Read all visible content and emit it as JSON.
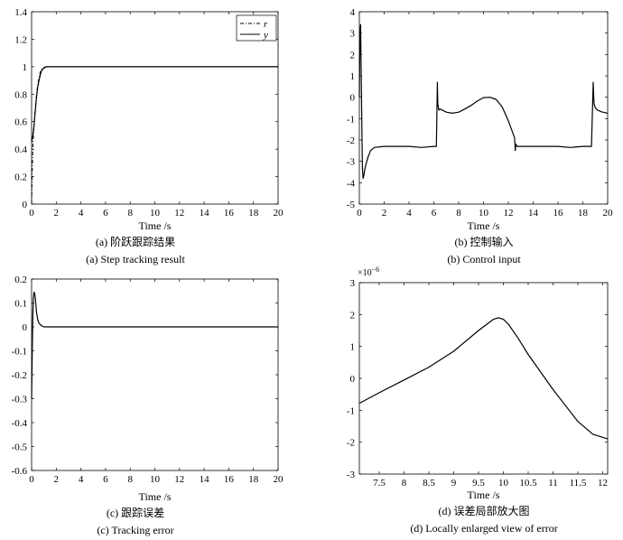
{
  "chart_data": [
    {
      "type": "line",
      "panel_label": "(a)",
      "caption_cn": "(a) 阶跃跟踪结果",
      "caption_en": "(a) Step tracking result",
      "xlabel": "Time /s",
      "ylabel": "",
      "xlim": [
        0,
        20
      ],
      "ylim": [
        0,
        1.4
      ],
      "xticks": [
        "0",
        "2",
        "4",
        "6",
        "8",
        "10",
        "12",
        "14",
        "16",
        "18",
        "20"
      ],
      "yticks": [
        "0",
        "0.2",
        "0.4",
        "0.6",
        "0.8",
        "1",
        "1.2",
        "1.4"
      ],
      "grid": false,
      "legend_position": "top-right",
      "series": [
        {
          "name": "r",
          "style": "dash-dot",
          "x": [
            0,
            0.05,
            0.1,
            0.15,
            0.2,
            0.3,
            0.4,
            0.5,
            0.6,
            0.7,
            0.8,
            1.0,
            1.2,
            1.5,
            2,
            5,
            10,
            15,
            20
          ],
          "y": [
            0,
            0.25,
            0.42,
            0.5,
            0.58,
            0.7,
            0.8,
            0.87,
            0.92,
            0.96,
            0.98,
            0.995,
            1.0,
            1.0,
            1.0,
            1.0,
            1.0,
            1.0,
            1.0
          ]
        },
        {
          "name": "y",
          "style": "solid",
          "x": [
            0,
            0.05,
            0.1,
            0.15,
            0.2,
            0.3,
            0.4,
            0.5,
            0.6,
            0.7,
            0.8,
            1.0,
            1.2,
            1.5,
            2,
            5,
            10,
            15,
            20
          ],
          "y": [
            0.45,
            0.48,
            0.5,
            0.53,
            0.57,
            0.68,
            0.78,
            0.85,
            0.9,
            0.94,
            0.97,
            0.99,
            1.0,
            1.0,
            1.0,
            1.0,
            1.0,
            1.0,
            1.0
          ]
        }
      ]
    },
    {
      "type": "line",
      "panel_label": "(b)",
      "caption_cn": "(b) 控制输入",
      "caption_en": "(b) Control input",
      "xlabel": "Time /s",
      "ylabel": "",
      "xlim": [
        0,
        20
      ],
      "ylim": [
        -5,
        4
      ],
      "xticks": [
        "0",
        "2",
        "4",
        "6",
        "8",
        "10",
        "12",
        "14",
        "16",
        "18",
        "20"
      ],
      "yticks": [
        "-5",
        "-4",
        "-3",
        "-2",
        "-1",
        "0",
        "1",
        "2",
        "3",
        "4"
      ],
      "grid": false,
      "series": [
        {
          "name": "",
          "x": [
            0,
            0.05,
            0.1,
            0.15,
            0.2,
            0.25,
            0.3,
            0.35,
            0.4,
            0.5,
            0.7,
            0.9,
            1.2,
            2,
            3,
            4,
            5,
            6,
            6.2,
            6.28,
            6.32,
            6.4,
            6.5,
            7,
            7.5,
            8,
            8.5,
            9,
            9.5,
            10,
            10.5,
            11,
            11.5,
            12,
            12.5,
            12.56,
            12.6,
            12.7,
            13,
            14,
            15,
            16,
            17,
            18,
            18.7,
            18.84,
            18.9,
            19,
            19.2,
            19.5,
            20
          ],
          "y": [
            0,
            3.0,
            3.4,
            1.0,
            -1.5,
            -3.3,
            -3.8,
            -3.7,
            -3.5,
            -3.2,
            -2.8,
            -2.5,
            -2.35,
            -2.3,
            -2.3,
            -2.3,
            -2.35,
            -2.3,
            -2.3,
            0.7,
            -0.3,
            -0.6,
            -0.55,
            -0.7,
            -0.75,
            -0.7,
            -0.55,
            -0.38,
            -0.18,
            -0.02,
            0.0,
            -0.1,
            -0.45,
            -1.1,
            -1.9,
            -2.5,
            -2.2,
            -2.3,
            -2.3,
            -2.3,
            -2.3,
            -2.3,
            -2.35,
            -2.3,
            -2.3,
            0.7,
            -0.3,
            -0.5,
            -0.6,
            -0.68,
            -0.75
          ]
        }
      ]
    },
    {
      "type": "line",
      "panel_label": "(c)",
      "caption_cn": "(c) 跟踪误差",
      "caption_en": "(c) Tracking error",
      "xlabel": "Time /s",
      "ylabel": "",
      "xlim": [
        0,
        20
      ],
      "ylim": [
        -0.6,
        0.2
      ],
      "xticks": [
        "0",
        "2",
        "4",
        "6",
        "8",
        "10",
        "12",
        "14",
        "16",
        "18",
        "20"
      ],
      "yticks": [
        "-0.6",
        "-0.5",
        "-0.4",
        "-0.3",
        "-0.2",
        "-0.1",
        "0",
        "0.1",
        "0.2"
      ],
      "grid": false,
      "series": [
        {
          "name": "",
          "x": [
            0,
            0.05,
            0.1,
            0.15,
            0.2,
            0.25,
            0.3,
            0.35,
            0.4,
            0.5,
            0.6,
            0.8,
            1.0,
            1.5,
            2,
            5,
            10,
            15,
            20
          ],
          "y": [
            -0.3,
            -0.1,
            0.05,
            0.12,
            0.145,
            0.14,
            0.12,
            0.09,
            0.06,
            0.03,
            0.015,
            0.005,
            0.0,
            0.0,
            0.0,
            0.0,
            0.0,
            0.0,
            0.0
          ]
        }
      ]
    },
    {
      "type": "line",
      "panel_label": "(d)",
      "caption_cn": "(d) 误差局部放大图",
      "caption_en": "(d) Locally enlarged view of error",
      "xlabel": "Time /s",
      "ylabel": "",
      "y_multiplier": "×10",
      "y_multiplier_exp": "−6",
      "xlim": [
        7.1,
        12.1
      ],
      "ylim": [
        -3,
        3
      ],
      "xticks": [
        "7.5",
        "8",
        "8.5",
        "9",
        "9.5",
        "10",
        "10.5",
        "11",
        "11.5",
        "12"
      ],
      "xtick_values": [
        7.5,
        8,
        8.5,
        9,
        9.5,
        10,
        10.5,
        11,
        11.5,
        12
      ],
      "yticks": [
        "-3",
        "-2",
        "-1",
        "0",
        "1",
        "2",
        "3"
      ],
      "grid": false,
      "series": [
        {
          "name": "",
          "x": [
            7.1,
            7.5,
            8,
            8.5,
            9,
            9.5,
            9.8,
            9.9,
            10.0,
            10.1,
            10.3,
            10.5,
            11,
            11.5,
            11.8,
            12.1
          ],
          "y": [
            -0.78,
            -0.45,
            -0.05,
            0.35,
            0.85,
            1.5,
            1.85,
            1.9,
            1.85,
            1.7,
            1.25,
            0.75,
            -0.35,
            -1.35,
            -1.75,
            -1.9
          ]
        }
      ]
    }
  ]
}
